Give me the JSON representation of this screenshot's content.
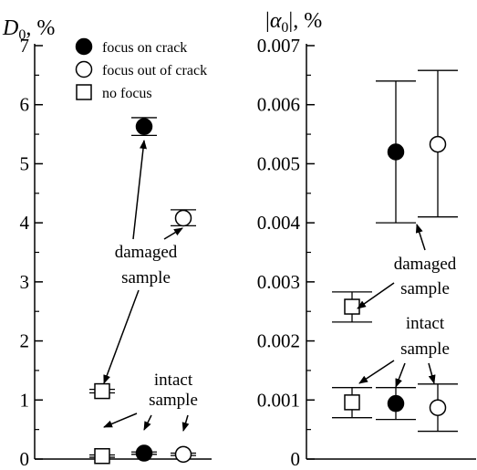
{
  "chart_data": [
    {
      "type": "scatter",
      "ylabel_main": "D",
      "ylabel_sub": "0",
      "ylabel_unit": ", %",
      "ylim": [
        0,
        7
      ],
      "yticks": [
        "0",
        "1",
        "2",
        "3",
        "4",
        "5",
        "6",
        "7"
      ],
      "grid": false,
      "legend": {
        "placement": "top",
        "entries": [
          {
            "label": "focus on crack",
            "marker": "filled-circle"
          },
          {
            "label": "focus out of crack",
            "marker": "open-circle"
          },
          {
            "label": "no focus",
            "marker": "open-square"
          }
        ]
      },
      "points": [
        {
          "group": "damaged",
          "series": "no focus",
          "marker": "open-square",
          "x": 1,
          "y": 1.15,
          "err_low": 1.12,
          "err_high": 1.18
        },
        {
          "group": "damaged",
          "series": "focus on crack",
          "marker": "filled-circle",
          "x": 2,
          "y": 5.63,
          "err_low": 5.48,
          "err_high": 5.78
        },
        {
          "group": "damaged",
          "series": "focus out of crack",
          "marker": "open-circle",
          "x": 3,
          "y": 4.08,
          "err_low": 3.95,
          "err_high": 4.22
        },
        {
          "group": "intact",
          "series": "no focus",
          "marker": "open-square",
          "x": 1,
          "y": 0.05,
          "err_low": 0.03,
          "err_high": 0.07
        },
        {
          "group": "intact",
          "series": "focus on crack",
          "marker": "filled-circle",
          "x": 2,
          "y": 0.1,
          "err_low": 0.08,
          "err_high": 0.12
        },
        {
          "group": "intact",
          "series": "focus out of crack",
          "marker": "open-circle",
          "x": 3,
          "y": 0.08,
          "err_low": 0.06,
          "err_high": 0.1
        }
      ],
      "annotations": [
        {
          "text_lines": [
            "damaged",
            "sample"
          ]
        },
        {
          "text_lines": [
            "intact",
            "sample"
          ]
        }
      ]
    },
    {
      "type": "scatter",
      "ylabel_main": "α",
      "ylabel_sub": "0",
      "ylabel_bar": "|",
      "ylabel_unit": ", %",
      "ylim": [
        0,
        0.007
      ],
      "yticks": [
        "0",
        "0.001",
        "0.002",
        "0.003",
        "0.004",
        "0.005",
        "0.006",
        "0.007"
      ],
      "grid": false,
      "points": [
        {
          "group": "damaged",
          "series": "no focus",
          "marker": "open-square",
          "x": 1,
          "y": 0.00258,
          "err_low": 0.00232,
          "err_high": 0.00283
        },
        {
          "group": "damaged",
          "series": "focus on crack",
          "marker": "filled-circle",
          "x": 2,
          "y": 0.0052,
          "err_low": 0.004,
          "err_high": 0.0064
        },
        {
          "group": "damaged",
          "series": "focus out of crack",
          "marker": "open-circle",
          "x": 3,
          "y": 0.00533,
          "err_low": 0.0041,
          "err_high": 0.00658
        },
        {
          "group": "intact",
          "series": "no focus",
          "marker": "open-square",
          "x": 1,
          "y": 0.00096,
          "err_low": 0.0007,
          "err_high": 0.00121
        },
        {
          "group": "intact",
          "series": "focus on crack",
          "marker": "filled-circle",
          "x": 2,
          "y": 0.00094,
          "err_low": 0.00067,
          "err_high": 0.00121
        },
        {
          "group": "intact",
          "series": "focus out of crack",
          "marker": "open-circle",
          "x": 3,
          "y": 0.00087,
          "err_low": 0.00047,
          "err_high": 0.00127
        }
      ],
      "annotations": [
        {
          "text_lines": [
            "damaged",
            "sample"
          ]
        },
        {
          "text_lines": [
            "intact",
            "sample"
          ]
        }
      ]
    }
  ]
}
